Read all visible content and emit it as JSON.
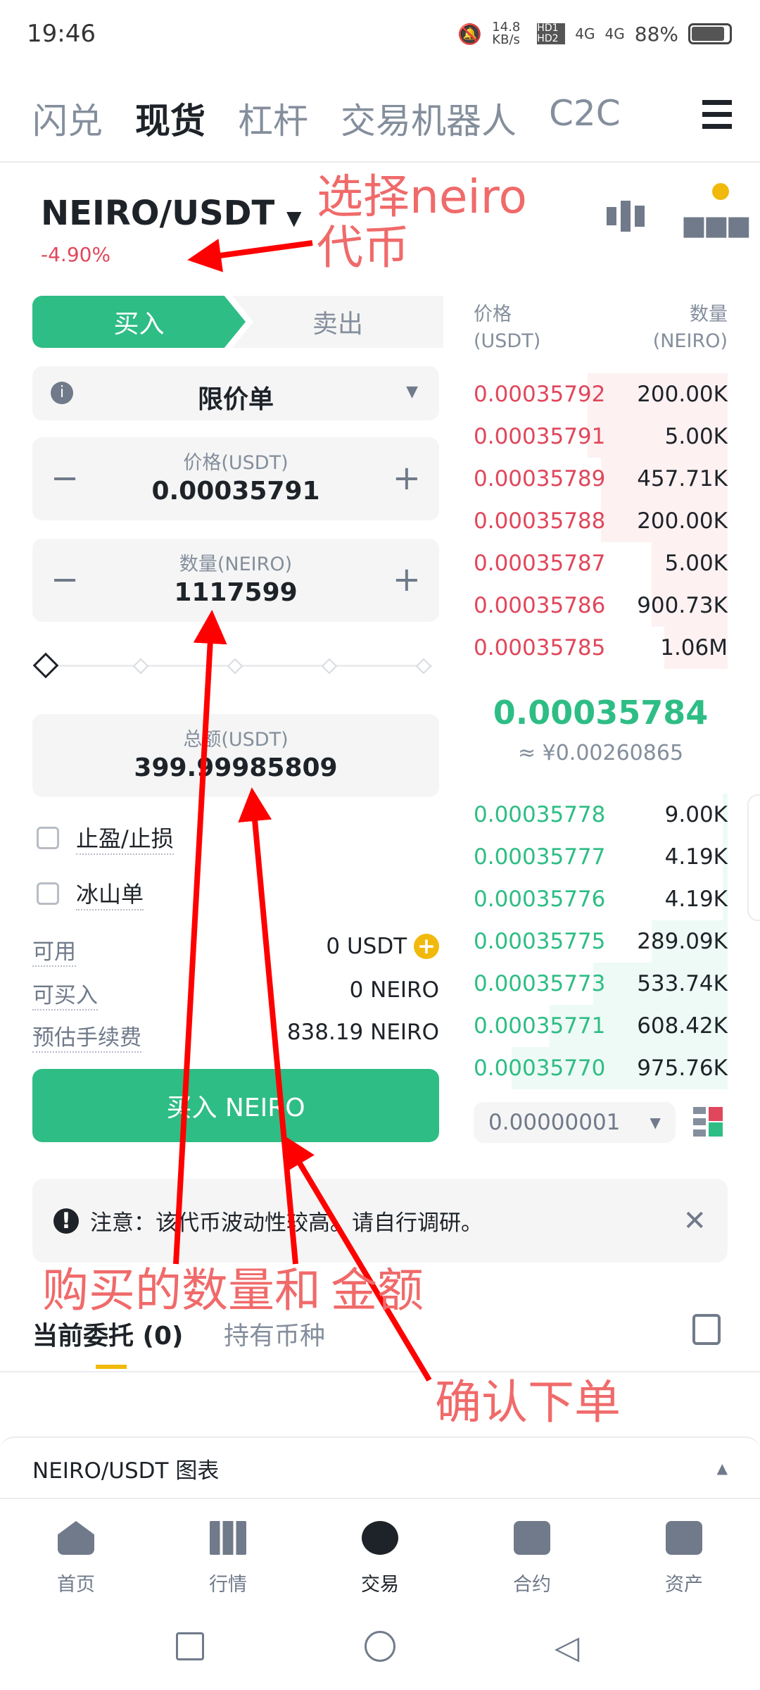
{
  "status_bar": {
    "time": "19:46",
    "net_speed": "14.8 KB/s",
    "sim": "HD1 HD2",
    "signal1": "4G",
    "signal2": "4G",
    "battery": "88%"
  },
  "top_tabs": [
    {
      "label": "闪兑",
      "active": false
    },
    {
      "label": "现货",
      "active": true
    },
    {
      "label": "杠杆",
      "active": false
    },
    {
      "label": "交易机器人",
      "active": false
    },
    {
      "label": "C2C",
      "active": false
    }
  ],
  "pair": {
    "name": "NEIRO/USDT",
    "change": "-4.90%"
  },
  "order_form": {
    "buy_label": "买入",
    "sell_label": "卖出",
    "order_type": "限价单",
    "price_label": "价格(USDT)",
    "price_value": "0.00035791",
    "qty_label": "数量(NEIRO)",
    "qty_value": "1117599",
    "slider_percent": 0,
    "total_label": "总额(USDT)",
    "total_value": "399.99985809",
    "tp_sl_label": "止盈/止损",
    "iceberg_label": "冰山单",
    "available_label": "可用",
    "available_value": "0 USDT",
    "can_buy_label": "可买入",
    "can_buy_value": "0 NEIRO",
    "fee_label": "预估手续费",
    "fee_value": "838.19 NEIRO",
    "buy_button": "买入 NEIRO"
  },
  "order_book": {
    "price_header": "价格",
    "price_unit": "(USDT)",
    "qty_header": "数量",
    "qty_unit": "(NEIRO)",
    "asks": [
      {
        "price": "0.00035792",
        "qty": "200.00K",
        "depth": 0.55
      },
      {
        "price": "0.00035791",
        "qty": "5.00K",
        "depth": 0.55
      },
      {
        "price": "0.00035789",
        "qty": "457.71K",
        "depth": 0.5
      },
      {
        "price": "0.00035788",
        "qty": "200.00K",
        "depth": 0.5
      },
      {
        "price": "0.00035787",
        "qty": "5.00K",
        "depth": 0.3
      },
      {
        "price": "0.00035786",
        "qty": "900.73K",
        "depth": 0.3
      },
      {
        "price": "0.00035785",
        "qty": "1.06M",
        "depth": 0.25
      }
    ],
    "last_price": "0.00035784",
    "last_price_cny": "≈ ¥0.00260865",
    "bids": [
      {
        "price": "0.00035778",
        "qty": "9.00K",
        "depth": 0.02
      },
      {
        "price": "0.00035777",
        "qty": "4.19K",
        "depth": 0.02
      },
      {
        "price": "0.00035776",
        "qty": "4.19K",
        "depth": 0.02
      },
      {
        "price": "0.00035775",
        "qty": "289.09K",
        "depth": 0.3
      },
      {
        "price": "0.00035773",
        "qty": "533.74K",
        "depth": 0.53
      },
      {
        "price": "0.00035771",
        "qty": "608.42K",
        "depth": 0.7
      },
      {
        "price": "0.00035770",
        "qty": "975.76K",
        "depth": 0.85
      }
    ],
    "tick_size": "0.00000001"
  },
  "notice": "注意：该代币波动性较高。请自行调研。",
  "orders_tabs": [
    {
      "label": "当前委托 (0)",
      "active": true
    },
    {
      "label": "持有币种",
      "active": false
    }
  ],
  "chart_bar": "NEIRO/USDT 图表",
  "bottom_nav": [
    {
      "label": "首页",
      "icon": "home-icon"
    },
    {
      "label": "行情",
      "icon": "chart-icon"
    },
    {
      "label": "交易",
      "icon": "trade-icon"
    },
    {
      "label": "合约",
      "icon": "futures-icon"
    },
    {
      "label": "资产",
      "icon": "wallet-icon"
    }
  ],
  "annotations": {
    "select": "选择neiro代币",
    "qty_amount_1": "购买的数量和",
    "qty_amount_2": "金额",
    "confirm": "确认下单",
    "color": "#f06a6a"
  },
  "colors": {
    "buy": "#2ebd85",
    "sell": "#e0475b",
    "accent": "#f0b90b"
  }
}
